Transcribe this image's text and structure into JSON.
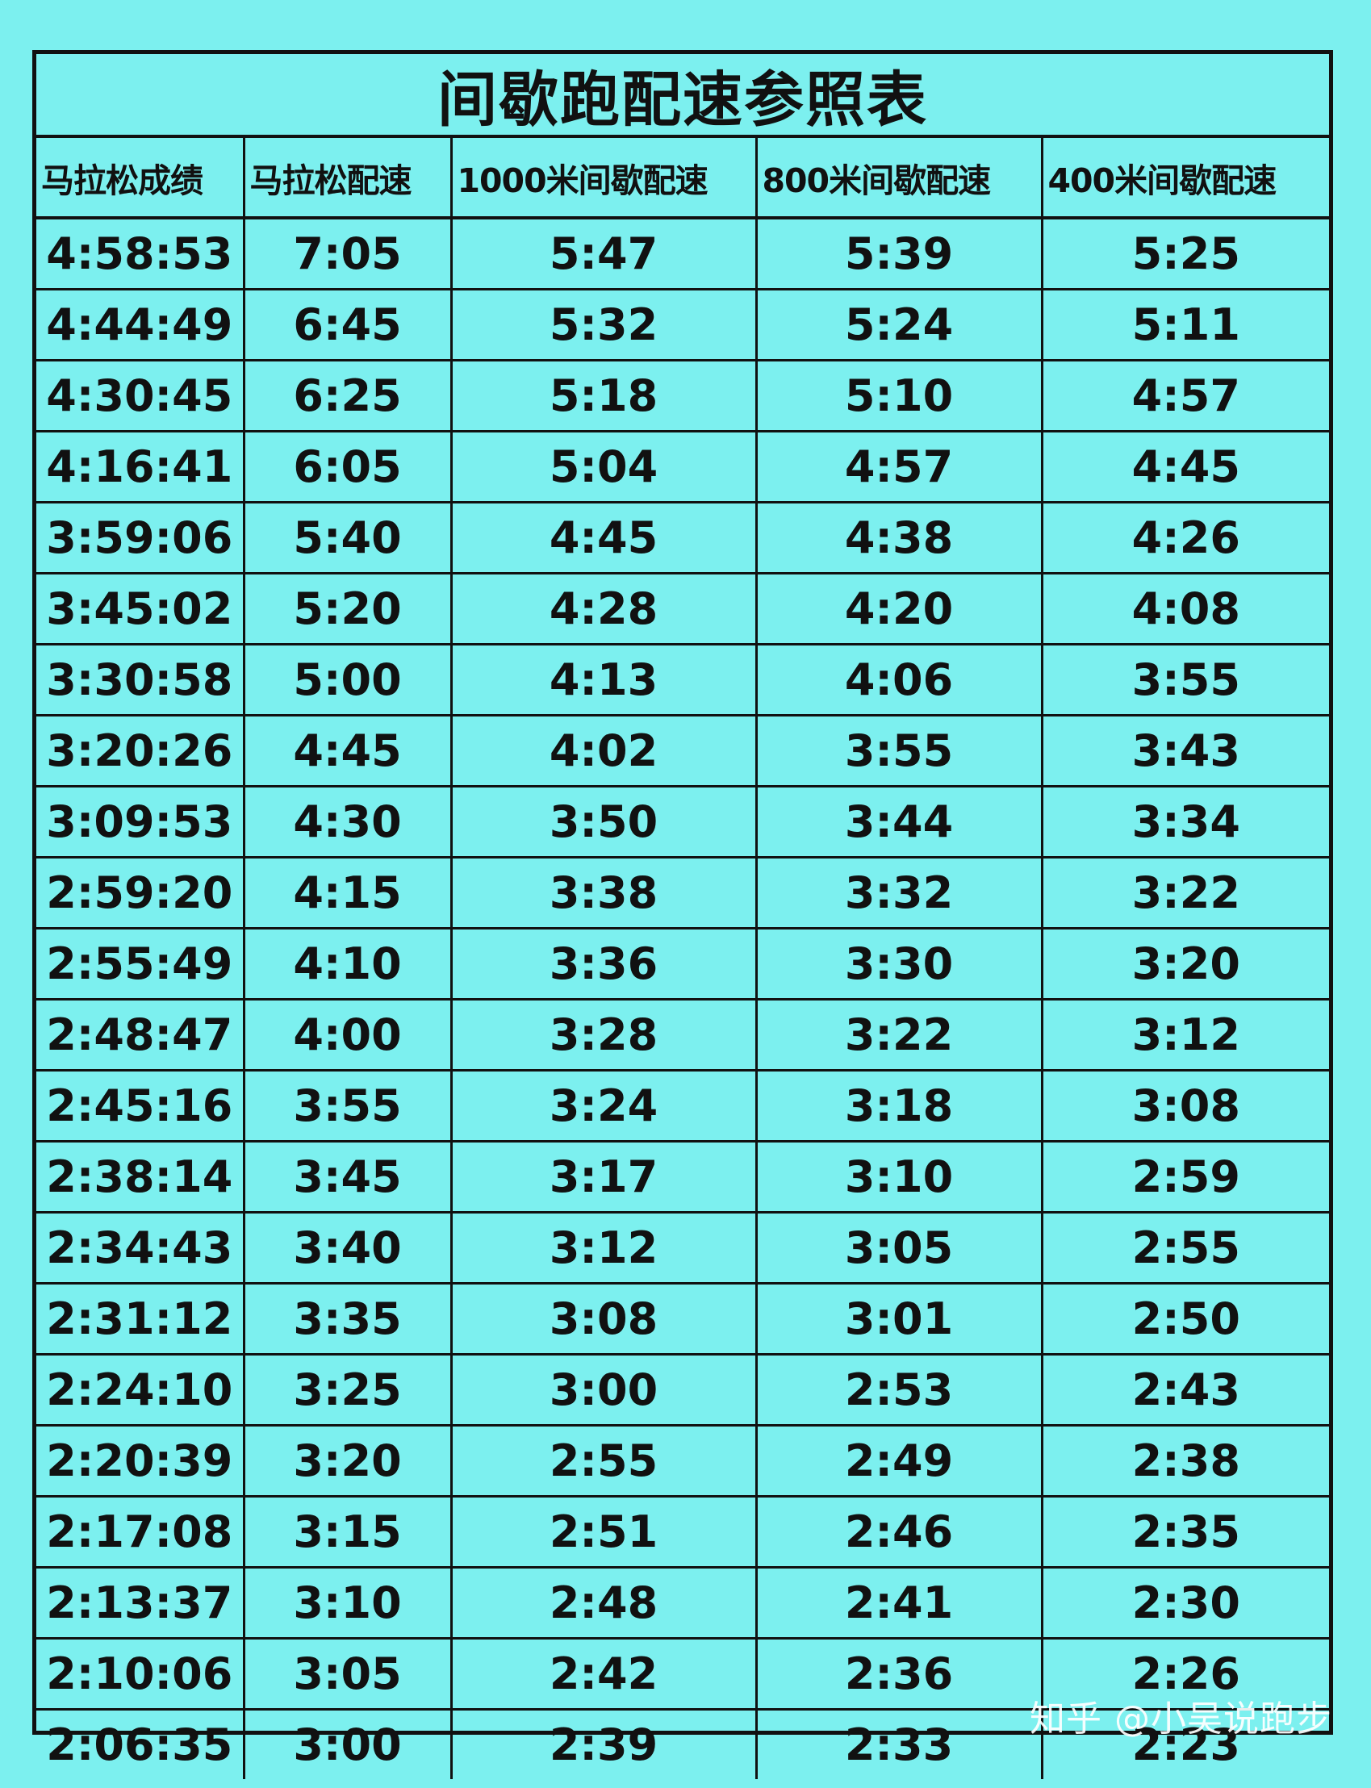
{
  "title": "间歇跑配速参照表",
  "headers": [
    "马拉松成绩",
    "马拉松配速",
    "1000米间歇配速",
    "800米间歇配速",
    "400米间歇配速"
  ],
  "rows": [
    [
      "4:58:53",
      "7:05",
      "5:47",
      "5:39",
      "5:25"
    ],
    [
      "4:44:49",
      "6:45",
      "5:32",
      "5:24",
      "5:11"
    ],
    [
      "4:30:45",
      "6:25",
      "5:18",
      "5:10",
      "4:57"
    ],
    [
      "4:16:41",
      "6:05",
      "5:04",
      "4:57",
      "4:45"
    ],
    [
      "3:59:06",
      "5:40",
      "4:45",
      "4:38",
      "4:26"
    ],
    [
      "3:45:02",
      "5:20",
      "4:28",
      "4:20",
      "4:08"
    ],
    [
      "3:30:58",
      "5:00",
      "4:13",
      "4:06",
      "3:55"
    ],
    [
      "3:20:26",
      "4:45",
      "4:02",
      "3:55",
      "3:43"
    ],
    [
      "3:09:53",
      "4:30",
      "3:50",
      "3:44",
      "3:34"
    ],
    [
      "2:59:20",
      "4:15",
      "3:38",
      "3:32",
      "3:22"
    ],
    [
      "2:55:49",
      "4:10",
      "3:36",
      "3:30",
      "3:20"
    ],
    [
      "2:48:47",
      "4:00",
      "3:28",
      "3:22",
      "3:12"
    ],
    [
      "2:45:16",
      "3:55",
      "3:24",
      "3:18",
      "3:08"
    ],
    [
      "2:38:14",
      "3:45",
      "3:17",
      "3:10",
      "2:59"
    ],
    [
      "2:34:43",
      "3:40",
      "3:12",
      "3:05",
      "2:55"
    ],
    [
      "2:31:12",
      "3:35",
      "3:08",
      "3:01",
      "2:50"
    ],
    [
      "2:24:10",
      "3:25",
      "3:00",
      "2:53",
      "2:43"
    ],
    [
      "2:20:39",
      "3:20",
      "2:55",
      "2:49",
      "2:38"
    ],
    [
      "2:17:08",
      "3:15",
      "2:51",
      "2:46",
      "2:35"
    ],
    [
      "2:13:37",
      "3:10",
      "2:48",
      "2:41",
      "2:30"
    ],
    [
      "2:10:06",
      "3:05",
      "2:42",
      "2:36",
      "2:26"
    ],
    [
      "2:06:35",
      "3:00",
      "2:39",
      "2:33",
      "2:23"
    ]
  ],
  "watermark": "知乎 @小吴说跑步",
  "colors": {
    "background": "#7cf0ef",
    "text": "#111111",
    "grid": "#111111"
  }
}
